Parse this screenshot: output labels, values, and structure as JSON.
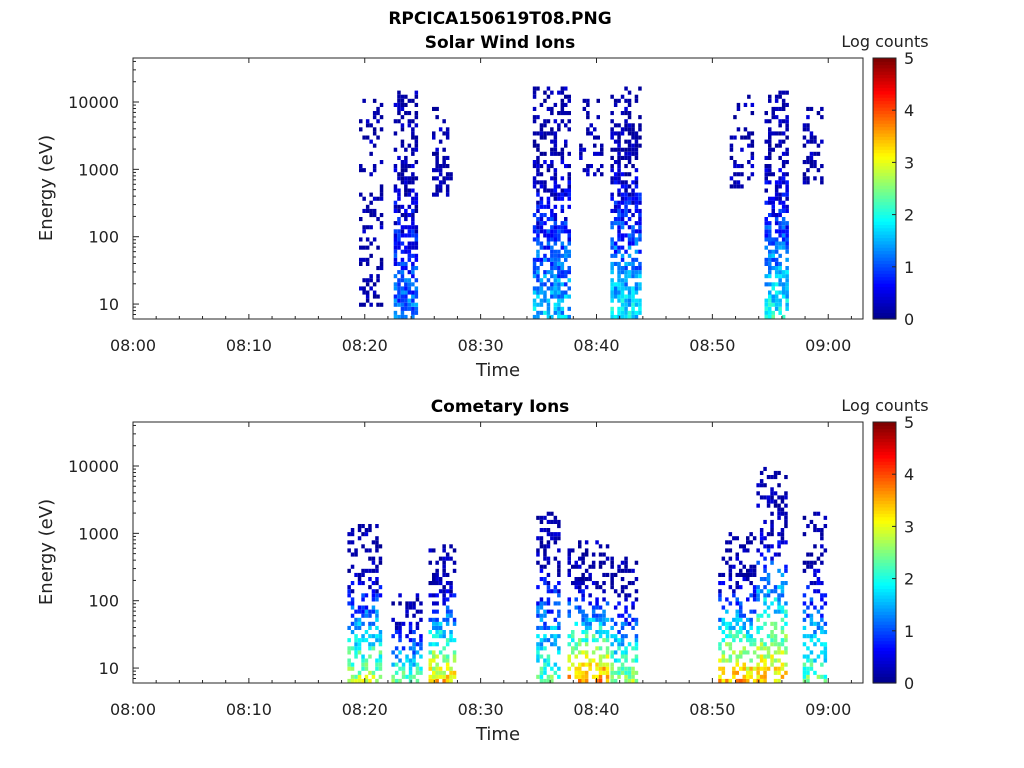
{
  "figure_title": "RPCICA150619T08.PNG",
  "colors": {
    "colormap": [
      "#00008f",
      "#0000ff",
      "#0080ff",
      "#00ffff",
      "#80ff80",
      "#ffff00",
      "#ff8000",
      "#ff0000",
      "#800000"
    ]
  },
  "chart_data": [
    {
      "type": "heatmap",
      "title": "Solar Wind Ions",
      "xlabel": "Time",
      "ylabel": "Energy (eV)",
      "x_ticks": [
        "08:00",
        "08:10",
        "08:20",
        "08:30",
        "08:40",
        "08:50",
        "09:00"
      ],
      "x_range_minutes": [
        0,
        63
      ],
      "y_ticks": [
        "10",
        "100",
        "1000",
        "10000"
      ],
      "y_scale": "log",
      "y_range": [
        6,
        45000
      ],
      "colorbar": {
        "label": "Log counts",
        "ticks": [
          "0",
          "1",
          "2",
          "3",
          "4",
          "5"
        ],
        "range": [
          0,
          5
        ]
      },
      "bursts": [
        {
          "t_start": 19.5,
          "t_end": 21.5,
          "e_min": 8,
          "e_max": 15000,
          "low_level": 0,
          "peak": 0.3,
          "density": 0.35
        },
        {
          "t_start": 22.5,
          "t_end": 24.5,
          "e_min": 6,
          "e_max": 15000,
          "low_level": 1.2,
          "peak": 0.8,
          "density": 0.75
        },
        {
          "t_start": 25.8,
          "t_end": 27.5,
          "e_min": 400,
          "e_max": 9000,
          "low_level": 0,
          "peak": 0.3,
          "density": 0.45
        },
        {
          "t_start": 34.5,
          "t_end": 37.5,
          "e_min": 6,
          "e_max": 16000,
          "low_level": 1.6,
          "peak": 0.9,
          "density": 0.7
        },
        {
          "t_start": 38.5,
          "t_end": 40.5,
          "e_min": 800,
          "e_max": 12000,
          "low_level": 0,
          "peak": 0.3,
          "density": 0.35
        },
        {
          "t_start": 41.2,
          "t_end": 43.8,
          "e_min": 6,
          "e_max": 17000,
          "low_level": 1.8,
          "peak": 0.9,
          "density": 0.75
        },
        {
          "t_start": 51.5,
          "t_end": 53.5,
          "e_min": 500,
          "e_max": 12000,
          "low_level": 0,
          "peak": 0.3,
          "density": 0.35
        },
        {
          "t_start": 54.5,
          "t_end": 56.5,
          "e_min": 6,
          "e_max": 15000,
          "low_level": 2.0,
          "peak": 0.9,
          "density": 0.75
        },
        {
          "t_start": 57.8,
          "t_end": 59.5,
          "e_min": 600,
          "e_max": 8000,
          "low_level": 0,
          "peak": 0.3,
          "density": 0.45
        }
      ]
    },
    {
      "type": "heatmap",
      "title": "Cometary Ions",
      "xlabel": "Time",
      "ylabel": "Energy (eV)",
      "x_ticks": [
        "08:00",
        "08:10",
        "08:20",
        "08:30",
        "08:40",
        "08:50",
        "09:00"
      ],
      "x_range_minutes": [
        0,
        63
      ],
      "y_ticks": [
        "10",
        "100",
        "1000",
        "10000"
      ],
      "y_scale": "log",
      "y_range": [
        6,
        45000
      ],
      "colorbar": {
        "label": "Log counts",
        "ticks": [
          "0",
          "1",
          "2",
          "3",
          "4",
          "5"
        ],
        "range": [
          0,
          5
        ]
      },
      "bursts": [
        {
          "t_start": 18.5,
          "t_end": 21.5,
          "e_min": 6,
          "e_max": 1400,
          "low_level": 2.8,
          "peak": 0.9,
          "density": 0.55
        },
        {
          "t_start": 22.3,
          "t_end": 24.8,
          "e_min": 6,
          "e_max": 130,
          "low_level": 2.5,
          "peak": 0.9,
          "density": 0.55
        },
        {
          "t_start": 25.5,
          "t_end": 27.8,
          "e_min": 6,
          "e_max": 700,
          "low_level": 3.4,
          "peak": 0.9,
          "density": 0.6
        },
        {
          "t_start": 34.8,
          "t_end": 36.8,
          "e_min": 6,
          "e_max": 2200,
          "low_level": 2.4,
          "peak": 0.9,
          "density": 0.5
        },
        {
          "t_start": 37.5,
          "t_end": 40.8,
          "e_min": 6,
          "e_max": 800,
          "low_level": 3.8,
          "peak": 1.0,
          "density": 0.55
        },
        {
          "t_start": 41.2,
          "t_end": 43.5,
          "e_min": 6,
          "e_max": 450,
          "low_level": 2.8,
          "peak": 0.9,
          "density": 0.55
        },
        {
          "t_start": 50.5,
          "t_end": 53.5,
          "e_min": 6,
          "e_max": 1000,
          "low_level": 3.6,
          "peak": 1.0,
          "density": 0.55
        },
        {
          "t_start": 53.8,
          "t_end": 56.2,
          "e_min": 6,
          "e_max": 10000,
          "low_level": 3.4,
          "peak": 1.0,
          "density": 0.5
        },
        {
          "t_start": 57.8,
          "t_end": 59.8,
          "e_min": 6,
          "e_max": 2000,
          "low_level": 2.4,
          "peak": 0.9,
          "density": 0.5
        }
      ]
    }
  ]
}
